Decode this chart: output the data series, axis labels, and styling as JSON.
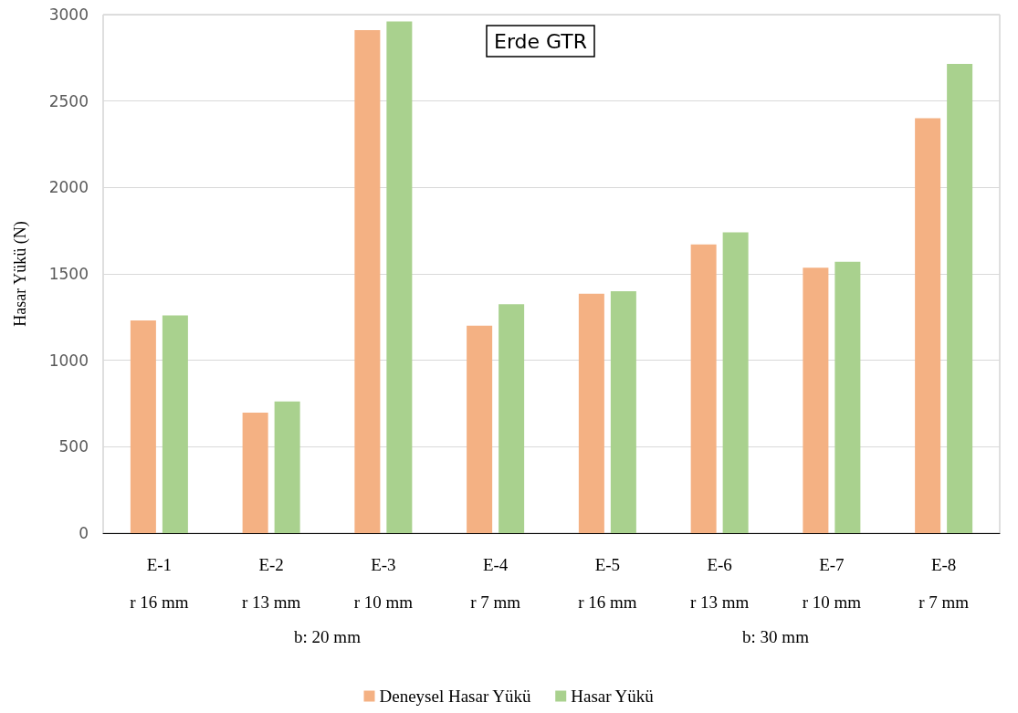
{
  "chart_data": {
    "type": "bar",
    "title": "Erde GTR",
    "ylabel": "Hasar Yükü (N)",
    "categories": [
      "E-1\nr 16 mm",
      "E-2\nr 13 mm",
      "E-3\nr 10 mm",
      "E-4\nr 7 mm",
      "E-5\nr 16 mm",
      "E-6\nr 13 mm",
      "E-7\nr 10 mm",
      "E-8\nr 7 mm"
    ],
    "series": [
      {
        "name": "Deneysel Hasar Yükü",
        "color": "#f4b183",
        "values": [
          1230,
          697,
          2910,
          1200,
          1385,
          1670,
          1535,
          2400
        ]
      },
      {
        "name": "Hasar Yükü",
        "color": "#a9d18e",
        "values": [
          1260,
          762,
          2960,
          1325,
          1400,
          1740,
          1570,
          2715
        ]
      }
    ],
    "annotations": [
      "b: 20 mm",
      "b: 30 mm"
    ],
    "ylim": [
      0,
      3000
    ],
    "yticks": [
      0,
      500,
      1000,
      1500,
      2000,
      2500,
      3000
    ],
    "grid": "y",
    "legend": "bottom"
  }
}
